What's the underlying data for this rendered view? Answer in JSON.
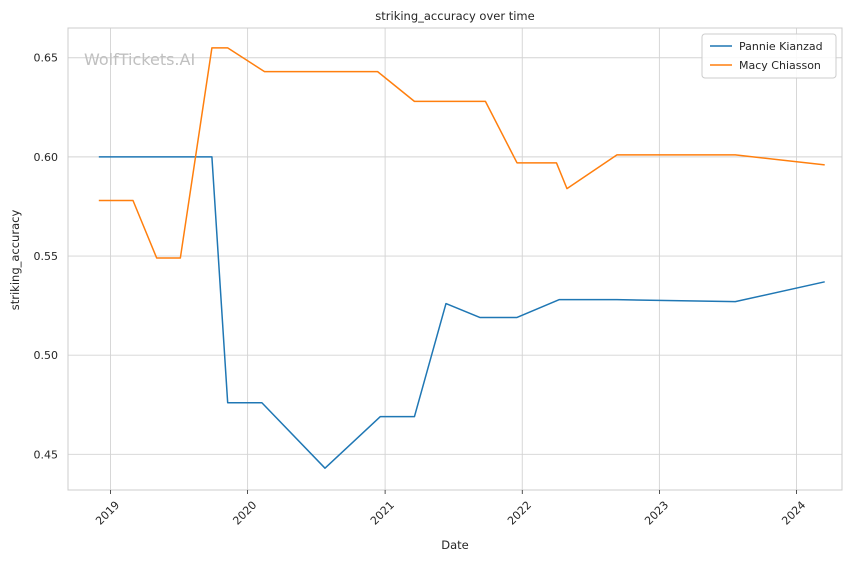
{
  "chart_data": {
    "type": "line",
    "title": "striking_accuracy over time",
    "xlabel": "Date",
    "ylabel": "striking_accuracy",
    "watermark": "WolfTickets.AI",
    "x_ticks": [
      "2019",
      "2020",
      "2021",
      "2022",
      "2023",
      "2024"
    ],
    "y_ticks": [
      "0.45",
      "0.50",
      "0.55",
      "0.60",
      "0.65"
    ],
    "xlim": [
      "2018-09-10",
      "2024-05-01"
    ],
    "ylim": [
      0.432,
      0.665
    ],
    "grid": true,
    "legend_position": "top-right",
    "series": [
      {
        "name": "Pannie Kianzad",
        "color": "#1f77b4",
        "points": [
          [
            "2018-12-01",
            0.6
          ],
          [
            "2019-09-28",
            0.6
          ],
          [
            "2019-11-09",
            0.476
          ],
          [
            "2020-02-08",
            0.476
          ],
          [
            "2020-07-25",
            0.443
          ],
          [
            "2020-12-19",
            0.469
          ],
          [
            "2021-03-20",
            0.469
          ],
          [
            "2021-06-12",
            0.526
          ],
          [
            "2021-09-10",
            0.519
          ],
          [
            "2021-12-18",
            0.519
          ],
          [
            "2022-04-09",
            0.528
          ],
          [
            "2022-09-10",
            0.528
          ],
          [
            "2023-07-22",
            0.527
          ],
          [
            "2024-03-16",
            0.537
          ]
        ]
      },
      {
        "name": "Macy Chiasson",
        "color": "#ff7f0e",
        "points": [
          [
            "2018-12-01",
            0.578
          ],
          [
            "2019-03-02",
            0.578
          ],
          [
            "2019-05-04",
            0.549
          ],
          [
            "2019-07-06",
            0.549
          ],
          [
            "2019-09-28",
            0.655
          ],
          [
            "2019-11-09",
            0.655
          ],
          [
            "2020-02-15",
            0.643
          ],
          [
            "2020-12-12",
            0.643
          ],
          [
            "2021-03-20",
            0.628
          ],
          [
            "2021-09-25",
            0.628
          ],
          [
            "2021-12-18",
            0.597
          ],
          [
            "2022-04-02",
            0.597
          ],
          [
            "2022-04-30",
            0.584
          ],
          [
            "2022-09-10",
            0.601
          ],
          [
            "2023-07-22",
            0.601
          ],
          [
            "2024-03-16",
            0.596
          ]
        ]
      }
    ]
  }
}
